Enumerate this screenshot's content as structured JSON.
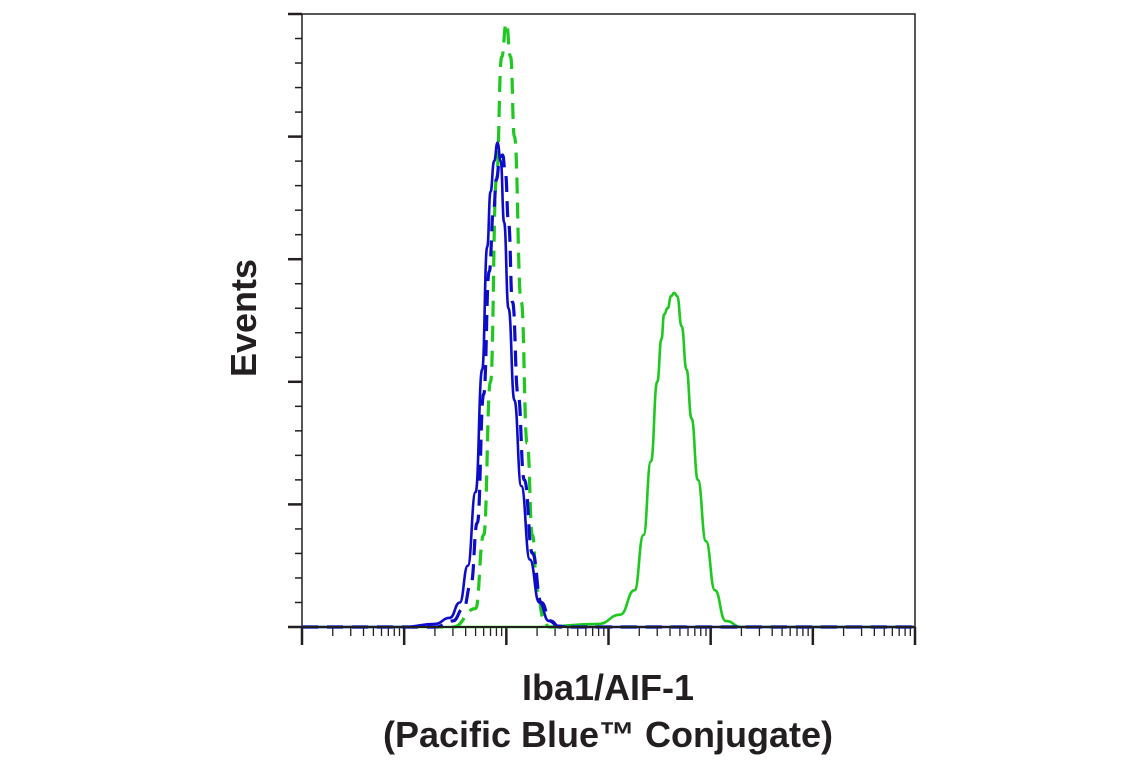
{
  "chart_data": {
    "type": "line",
    "title": "",
    "xlabel_line1": "Iba1/AIF-1",
    "xlabel_line2": "(Pacific Blue™ Conjugate)",
    "ylabel": "Events",
    "x_scale": "log",
    "xlim": [
      1,
      1000000
    ],
    "ylim": [
      0,
      1.0
    ],
    "grid": false,
    "legend": "none",
    "series": [
      {
        "color": "#1ec81e",
        "line_style": "solid",
        "x": [
          1,
          200,
          800,
          1300,
          1800,
          2200,
          2600,
          3000,
          3300,
          3500,
          3800,
          4100,
          4400,
          4700,
          5200,
          5800,
          6500,
          7500,
          9000,
          11000,
          14000,
          20000,
          30000,
          1000000
        ],
        "y": [
          0,
          0,
          0.005,
          0.02,
          0.06,
          0.15,
          0.27,
          0.4,
          0.47,
          0.51,
          0.52,
          0.54,
          0.545,
          0.54,
          0.49,
          0.42,
          0.34,
          0.24,
          0.14,
          0.06,
          0.01,
          0,
          0,
          0
        ]
      },
      {
        "color": "#1ec81e",
        "line_style": "dashed",
        "x": [
          1,
          30,
          50,
          60,
          70,
          80,
          90,
          100,
          110,
          120,
          140,
          160,
          180,
          200,
          230,
          260,
          300,
          1000000
        ],
        "y": [
          0,
          0,
          0.03,
          0.15,
          0.4,
          0.73,
          0.93,
          0.985,
          0.93,
          0.8,
          0.53,
          0.3,
          0.15,
          0.06,
          0.015,
          0,
          0,
          0
        ]
      },
      {
        "color": "#0d0dc8",
        "line_style": "solid",
        "x": [
          1,
          10,
          20,
          28,
          35,
          42,
          50,
          58,
          65,
          70,
          76,
          82,
          88,
          95,
          105,
          120,
          140,
          170,
          210,
          260,
          320,
          400,
          1000000
        ],
        "y": [
          0,
          0,
          0.005,
          0.015,
          0.04,
          0.1,
          0.22,
          0.42,
          0.62,
          0.71,
          0.76,
          0.79,
          0.76,
          0.66,
          0.52,
          0.37,
          0.23,
          0.11,
          0.04,
          0.01,
          0.002,
          0,
          0
        ]
      },
      {
        "color": "#0d0dc8",
        "line_style": "dashed",
        "x": [
          1,
          20,
          30,
          38,
          45,
          52,
          60,
          68,
          75,
          80,
          86,
          92,
          98,
          105,
          115,
          130,
          150,
          180,
          220,
          270,
          330,
          1000000
        ],
        "y": [
          0,
          0,
          0.01,
          0.03,
          0.07,
          0.17,
          0.38,
          0.58,
          0.68,
          0.73,
          0.76,
          0.77,
          0.74,
          0.66,
          0.53,
          0.38,
          0.24,
          0.12,
          0.04,
          0.01,
          0,
          0
        ]
      }
    ]
  }
}
